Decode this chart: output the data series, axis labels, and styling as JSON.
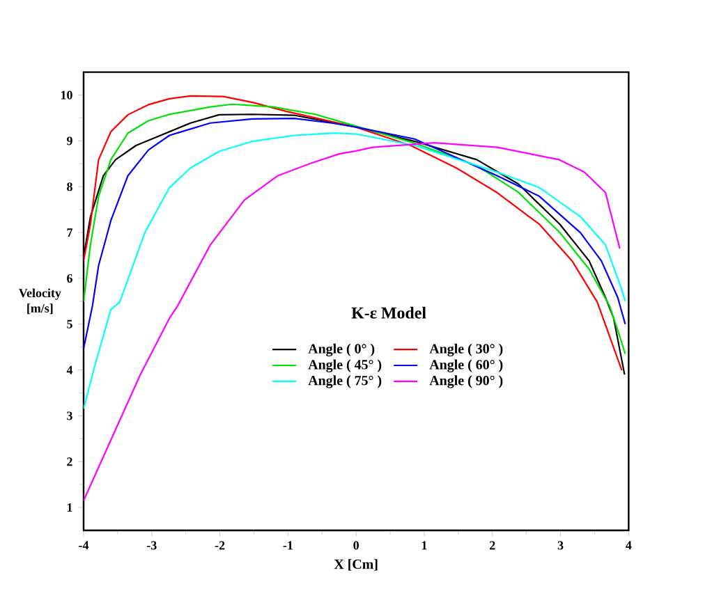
{
  "chart_data": {
    "type": "line",
    "xlabel": "X [Cm]",
    "ylabel": "Velocity [m/s]",
    "legend_title": "K-ε Model",
    "xlim": [
      -4,
      4
    ],
    "ylim": [
      0.5,
      10.5
    ],
    "xticks": [
      -4,
      -3,
      -2,
      -1,
      0,
      1,
      2,
      3,
      4
    ],
    "yticks": [
      1,
      2,
      3,
      4,
      5,
      6,
      7,
      8,
      9,
      10
    ],
    "grid": false,
    "legend": "center",
    "marker": "none",
    "line_style": "solid",
    "series": [
      {
        "name": "Angle ( 0° )",
        "color": "#000000",
        "x": [
          -4,
          -3.9,
          -3.71,
          -3.53,
          -3.23,
          -2.87,
          -2.43,
          -2.01,
          -1.52,
          -0.91,
          0,
          0.86,
          1.77,
          2.38,
          2.99,
          3.42,
          3.66,
          3.78,
          3.94
        ],
        "values": [
          6.46,
          7.34,
          8.24,
          8.59,
          8.9,
          9.12,
          9.39,
          9.57,
          9.58,
          9.56,
          9.3,
          8.99,
          8.59,
          8.06,
          7.18,
          6.38,
          5.58,
          5.13,
          3.9
        ]
      },
      {
        "name": "Angle ( 30° )",
        "color": "#ff0000",
        "x": [
          -4,
          -3.9,
          -3.78,
          -3.6,
          -3.35,
          -3.05,
          -2.74,
          -2.43,
          -1.95,
          -1.52,
          -1.04,
          0,
          0.8,
          1.47,
          2.07,
          2.69,
          3.17,
          3.54,
          3.9
        ],
        "values": [
          6.38,
          7.18,
          8.59,
          9.2,
          9.57,
          9.79,
          9.92,
          9.98,
          9.97,
          9.84,
          9.65,
          9.3,
          8.9,
          8.41,
          7.87,
          7.18,
          6.38,
          5.48,
          3.99
        ]
      },
      {
        "name": "Angle ( 45° )",
        "color": "#00e000",
        "x": [
          -4,
          -3.9,
          -3.78,
          -3.6,
          -3.35,
          -3.05,
          -2.74,
          -2.14,
          -1.82,
          -1.22,
          -0.6,
          0,
          0.86,
          1.77,
          2.38,
          2.99,
          3.42,
          3.72,
          3.84,
          3.95
        ],
        "values": [
          5.49,
          6.73,
          7.79,
          8.59,
          9.17,
          9.44,
          9.58,
          9.74,
          9.8,
          9.74,
          9.58,
          9.32,
          8.95,
          8.46,
          7.88,
          7.0,
          6.2,
          5.4,
          4.87,
          4.35
        ]
      },
      {
        "name": "Angle ( 60° )",
        "color": "#0000ff",
        "x": [
          -4,
          -3.87,
          -3.78,
          -3.6,
          -3.35,
          -3.05,
          -2.74,
          -2.14,
          -1.52,
          -0.91,
          -0.36,
          0,
          0.86,
          2.07,
          2.69,
          3.29,
          3.6,
          3.84,
          3.95
        ],
        "values": [
          4.47,
          5.4,
          6.28,
          7.26,
          8.24,
          8.8,
          9.12,
          9.39,
          9.48,
          9.49,
          9.39,
          9.3,
          9.04,
          8.24,
          7.79,
          7.0,
          6.38,
          5.58,
          5.0
        ]
      },
      {
        "name": "Angle ( 75° )",
        "color": "#00ffff",
        "x": [
          -4,
          -3.84,
          -3.6,
          -3.47,
          -3.1,
          -2.74,
          -2.43,
          -2.01,
          -1.52,
          -0.91,
          -0.31,
          0,
          0.86,
          2.07,
          2.69,
          3.29,
          3.66,
          3.9,
          3.95
        ],
        "values": [
          3.15,
          4.07,
          5.32,
          5.48,
          7.0,
          7.98,
          8.41,
          8.77,
          8.99,
          9.12,
          9.17,
          9.15,
          8.9,
          8.32,
          7.98,
          7.35,
          6.73,
          5.75,
          5.5
        ]
      },
      {
        "name": "Angle ( 90° )",
        "color": "#ff00ff",
        "x": [
          -4,
          -3.6,
          -3.17,
          -2.74,
          -2.62,
          -2.14,
          -1.64,
          -1.15,
          -0.67,
          -0.24,
          0,
          0.24,
          1.15,
          2.07,
          2.98,
          3.35,
          3.66,
          3.87
        ],
        "values": [
          1.15,
          2.47,
          3.89,
          5.13,
          5.4,
          6.73,
          7.71,
          8.24,
          8.51,
          8.72,
          8.78,
          8.86,
          8.96,
          8.86,
          8.59,
          8.32,
          7.87,
          6.65
        ]
      }
    ]
  }
}
